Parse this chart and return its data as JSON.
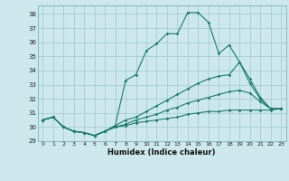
{
  "title": "",
  "xlabel": "Humidex (Indice chaleur)",
  "ylabel": "",
  "background_color": "#cce8ec",
  "grid_color": "#a0c8cc",
  "line_color": "#1a7a6e",
  "xlim": [
    -0.5,
    23.5
  ],
  "ylim": [
    29,
    38.6
  ],
  "yticks": [
    29,
    30,
    31,
    32,
    33,
    34,
    35,
    36,
    37,
    38
  ],
  "xticks": [
    0,
    1,
    2,
    3,
    4,
    5,
    6,
    7,
    8,
    9,
    10,
    11,
    12,
    13,
    14,
    15,
    16,
    17,
    18,
    19,
    20,
    21,
    22,
    23
  ],
  "series": [
    {
      "x": [
        0,
        1,
        2,
        3,
        4,
        5,
        6,
        7,
        8,
        9,
        10,
        11,
        12,
        13,
        14,
        15,
        16,
        17,
        18,
        19,
        20,
        21,
        22,
        23
      ],
      "y": [
        30.5,
        30.7,
        30.0,
        29.7,
        29.6,
        29.4,
        29.7,
        30.1,
        33.3,
        33.7,
        35.4,
        35.9,
        36.6,
        36.6,
        38.1,
        38.1,
        37.4,
        35.2,
        35.8,
        34.6,
        33.4,
        32.1,
        31.3,
        31.3
      ]
    },
    {
      "x": [
        0,
        1,
        2,
        3,
        4,
        5,
        6,
        7,
        8,
        9,
        10,
        11,
        12,
        13,
        14,
        15,
        16,
        17,
        18,
        19,
        20,
        21,
        22,
        23
      ],
      "y": [
        30.5,
        30.7,
        30.0,
        29.7,
        29.6,
        29.4,
        29.7,
        30.1,
        30.5,
        30.7,
        31.1,
        31.5,
        31.9,
        32.3,
        32.7,
        33.1,
        33.4,
        33.6,
        33.7,
        34.6,
        33.1,
        32.0,
        31.3,
        31.3
      ]
    },
    {
      "x": [
        0,
        1,
        2,
        3,
        4,
        5,
        6,
        7,
        8,
        9,
        10,
        11,
        12,
        13,
        14,
        15,
        16,
        17,
        18,
        19,
        20,
        21,
        22,
        23
      ],
      "y": [
        30.5,
        30.7,
        30.0,
        29.7,
        29.6,
        29.4,
        29.7,
        30.0,
        30.2,
        30.5,
        30.7,
        30.9,
        31.2,
        31.4,
        31.7,
        31.9,
        32.1,
        32.3,
        32.5,
        32.6,
        32.4,
        31.8,
        31.3,
        31.3
      ]
    },
    {
      "x": [
        0,
        1,
        2,
        3,
        4,
        5,
        6,
        7,
        8,
        9,
        10,
        11,
        12,
        13,
        14,
        15,
        16,
        17,
        18,
        19,
        20,
        21,
        22,
        23
      ],
      "y": [
        30.5,
        30.7,
        30.0,
        29.7,
        29.6,
        29.4,
        29.7,
        30.0,
        30.1,
        30.3,
        30.4,
        30.5,
        30.6,
        30.7,
        30.9,
        31.0,
        31.1,
        31.1,
        31.2,
        31.2,
        31.2,
        31.2,
        31.2,
        31.3
      ]
    }
  ]
}
